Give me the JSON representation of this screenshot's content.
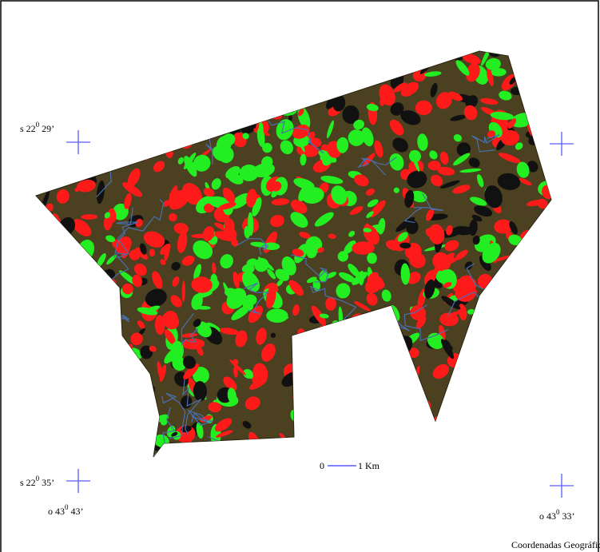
{
  "labels": {
    "lat_top": {
      "prefix": "s 22",
      "deg": "0",
      "min": " 29’"
    },
    "lat_bottom": {
      "prefix": "s 22",
      "deg": "0",
      "min": " 35’"
    },
    "lon_left": {
      "prefix": "o 43",
      "deg": "0",
      "min": " 43’"
    },
    "lon_right": {
      "prefix": "o 43",
      "deg": "0",
      "min": " 33’"
    }
  },
  "scale": {
    "start": "0",
    "end": "1 Km"
  },
  "footer": "Coordenadas Geográficas"
}
